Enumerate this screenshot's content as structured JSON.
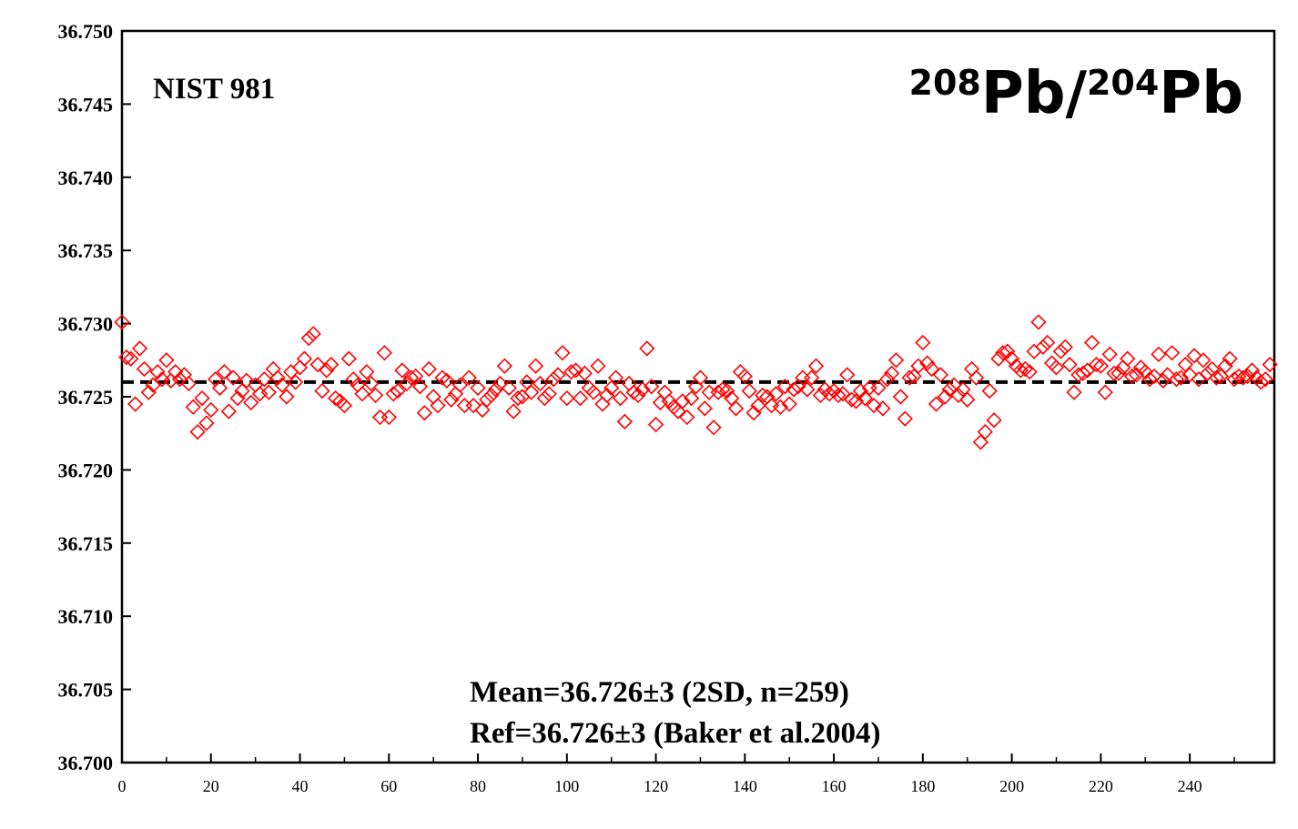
{
  "chart_data": {
    "type": "scatter",
    "sample_label": "NIST 981",
    "ratio_label": {
      "mass_top": "208",
      "element_top": "Pb",
      "separator": "/",
      "mass_bottom": "204",
      "element_bottom": "Pb"
    },
    "stats_lines": [
      "Mean=36.726±3 (2SD, n=259)",
      "Ref=36.726±3 (Baker et al.2004)"
    ],
    "xlim": [
      0,
      259
    ],
    "ylim": [
      36.7,
      36.75
    ],
    "x_ticks": [
      0,
      20,
      40,
      60,
      80,
      100,
      120,
      140,
      160,
      180,
      200,
      220,
      240
    ],
    "x_tick_labels": [
      "0",
      "20",
      "40",
      "60",
      "80",
      "100",
      "120",
      "140",
      "160",
      "180",
      "200",
      "220",
      "240"
    ],
    "y_ticks": [
      36.7,
      36.705,
      36.71,
      36.715,
      36.72,
      36.725,
      36.73,
      36.735,
      36.74,
      36.745,
      36.75
    ],
    "y_tick_labels": [
      "36.700",
      "36.705",
      "36.710",
      "36.715",
      "36.720",
      "36.725",
      "36.730",
      "36.735",
      "36.740",
      "36.745",
      "36.750"
    ],
    "reference_line": 36.726,
    "marker": "diamond-open",
    "marker_color": "#ff0000",
    "reference_line_color": "#000000",
    "values": [
      36.7301,
      36.7277,
      36.7276,
      36.7245,
      36.7283,
      36.7269,
      36.7253,
      36.7258,
      36.7267,
      36.7262,
      36.7275,
      36.7261,
      36.7267,
      36.7262,
      36.7265,
      36.7259,
      36.7243,
      36.7226,
      36.7249,
      36.7232,
      36.7241,
      36.7262,
      36.7256,
      36.7267,
      36.724,
      36.7263,
      36.7249,
      36.7254,
      36.7261,
      36.7246,
      36.7258,
      36.7252,
      36.7262,
      36.7253,
      36.7269,
      36.7263,
      36.7258,
      36.725,
      36.7267,
      36.726,
      36.727,
      36.7276,
      36.729,
      36.7293,
      36.7272,
      36.7254,
      36.7268,
      36.7272,
      36.7249,
      36.7247,
      36.7244,
      36.7276,
      36.7262,
      36.7258,
      36.7252,
      36.7267,
      36.7259,
      36.7251,
      36.7236,
      36.728,
      36.7236,
      36.7252,
      36.7254,
      36.7268,
      36.7259,
      36.7263,
      36.7264,
      36.7257,
      36.7239,
      36.7269,
      36.725,
      36.7244,
      36.7263,
      36.7261,
      36.7248,
      36.7252,
      36.7258,
      36.7244,
      36.7263,
      36.7244,
      36.7256,
      36.7241,
      36.7248,
      36.7251,
      36.7255,
      36.7259,
      36.7271,
      36.7256,
      36.724,
      36.7249,
      36.725,
      36.726,
      36.7253,
      36.7271,
      36.7259,
      36.7249,
      36.7252,
      36.7262,
      36.7265,
      36.728,
      36.7249,
      36.7267,
      36.7268,
      36.7249,
      36.7266,
      36.7256,
      36.7253,
      36.7271,
      36.7245,
      36.7251,
      36.7256,
      36.7263,
      36.7249,
      36.7233,
      36.7259,
      36.7253,
      36.7251,
      36.7255,
      36.7283,
      36.7257,
      36.7231,
      36.7246,
      36.7253,
      36.7247,
      36.7243,
      36.724,
      36.7247,
      36.7236,
      36.7249,
      36.7257,
      36.7263,
      36.7242,
      36.7253,
      36.7229,
      36.7253,
      36.7255,
      36.7254,
      36.7249,
      36.7242,
      36.7267,
      36.7264,
      36.7254,
      36.7239,
      36.7244,
      36.7251,
      36.725,
      36.7244,
      36.7252,
      36.7243,
      36.7257,
      36.7245,
      36.7255,
      36.7257,
      36.7263,
      36.7255,
      36.7263,
      36.7271,
      36.7251,
      36.7255,
      36.7252,
      36.7254,
      36.7251,
      36.7252,
      36.7265,
      36.7248,
      36.7247,
      36.7254,
      36.7249,
      36.7256,
      36.7244,
      36.7256,
      36.7242,
      36.7262,
      36.7266,
      36.7275,
      36.725,
      36.7235,
      36.7263,
      36.7264,
      36.7271,
      36.7287,
      36.7273,
      36.7269,
      36.7245,
      36.7265,
      36.725,
      36.7255,
      36.7258,
      36.7251,
      36.7255,
      36.7248,
      36.7269,
      36.7263,
      36.7219,
      36.7226,
      36.7254,
      36.7234,
      36.7276,
      36.728,
      36.7281,
      36.7276,
      36.7271,
      36.7268,
      36.7269,
      36.7267,
      36.7281,
      36.7301,
      36.7284,
      36.7287,
      36.7273,
      36.727,
      36.7281,
      36.7284,
      36.7272,
      36.7253,
      36.7265,
      36.7266,
      36.7268,
      36.7287,
      36.7272,
      36.7271,
      36.7253,
      36.7279,
      36.7266,
      36.7266,
      36.727,
      36.7276,
      36.7264,
      36.7265,
      36.727,
      36.7267,
      36.7262,
      36.7264,
      36.7279,
      36.7261,
      36.7265,
      36.728,
      36.7262,
      36.7263,
      36.7272,
      36.7265,
      36.7278,
      36.7262,
      36.7275,
      36.7266,
      36.7269,
      36.7263,
      36.7264,
      36.7271,
      36.7276,
      36.7262,
      36.7264,
      36.7263,
      36.7264,
      36.7268,
      36.7263,
      36.726,
      36.7262,
      36.7272
    ]
  }
}
